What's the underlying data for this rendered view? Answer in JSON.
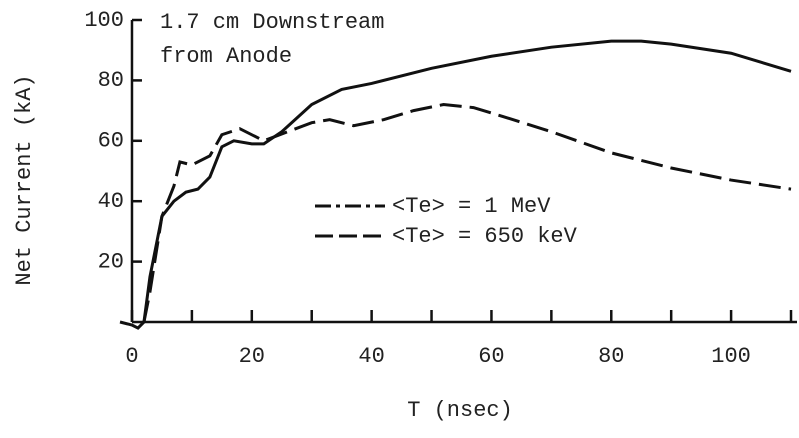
{
  "chart_data": {
    "type": "line",
    "annotation": [
      "1.7 cm Downstream",
      "from Anode"
    ],
    "x_label": "T (nsec)",
    "y_label": "Net Current (kA)",
    "xlim": [
      -2,
      111
    ],
    "ylim": [
      0,
      100
    ],
    "xticks": [
      0,
      20,
      40,
      60,
      80,
      100
    ],
    "xminor_ticks": [
      10,
      30,
      50,
      70,
      90,
      110
    ],
    "yticks": [
      20,
      40,
      60,
      80,
      100
    ],
    "series": [
      {
        "name": "<Te> =  1 MeV",
        "color": "#111111",
        "dash": "solid",
        "x": [
          -2,
          0,
          1,
          2,
          3,
          5,
          7,
          9,
          11,
          13,
          15,
          17,
          20,
          22,
          25,
          30,
          35,
          40,
          50,
          60,
          70,
          80,
          85,
          90,
          100,
          110
        ],
        "values": [
          0,
          -1,
          -2,
          0,
          15,
          35,
          40,
          43,
          44,
          48,
          58,
          60,
          59,
          59,
          63,
          72,
          77,
          79,
          84,
          88,
          91,
          93,
          93,
          92,
          89,
          83
        ]
      },
      {
        "name": "<Te> =  650 keV",
        "color": "#111111",
        "dash": "dashed",
        "x": [
          2,
          3,
          5,
          7,
          8,
          10,
          13,
          15,
          18,
          22,
          26,
          30,
          33,
          37,
          42,
          47,
          52,
          57,
          62,
          70,
          80,
          90,
          100,
          110
        ],
        "values": [
          0,
          10,
          35,
          45,
          53,
          52,
          55,
          62,
          64,
          60,
          63,
          66,
          67,
          65,
          67,
          70,
          72,
          71,
          68,
          63,
          56,
          51,
          47,
          44
        ]
      }
    ]
  }
}
